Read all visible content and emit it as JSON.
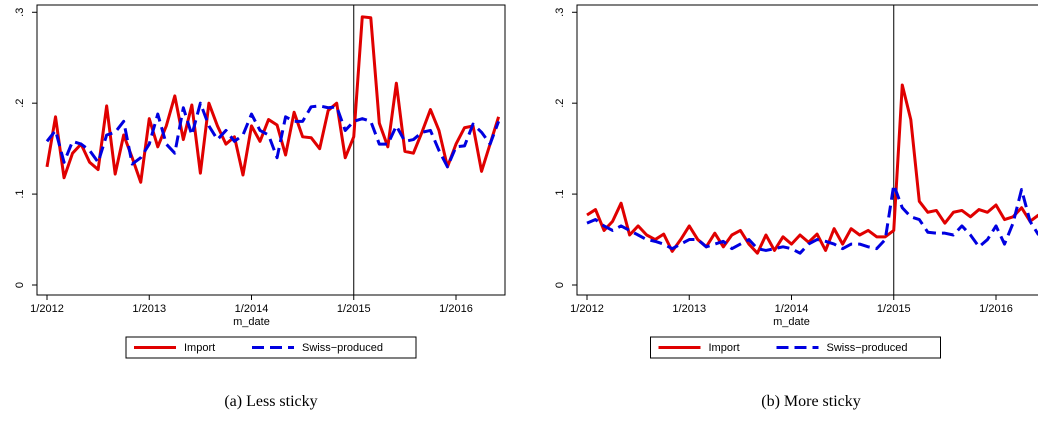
{
  "chart_data": [
    {
      "type": "line",
      "caption": "(a) Less sticky",
      "x_label": "m_date",
      "categories": [
        "1/2012",
        null,
        null,
        null,
        null,
        null,
        null,
        null,
        null,
        null,
        null,
        null,
        "1/2013",
        null,
        null,
        null,
        null,
        null,
        null,
        null,
        null,
        null,
        null,
        null,
        "1/2014",
        null,
        null,
        null,
        null,
        null,
        null,
        null,
        null,
        null,
        null,
        null,
        "1/2015",
        null,
        null,
        null,
        null,
        null,
        null,
        null,
        null,
        null,
        null,
        null,
        "1/2016",
        null,
        null,
        null,
        null,
        null
      ],
      "xline": 36,
      "ylim": [
        -0.011,
        0.308
      ],
      "yticks": [
        {
          "value": 0,
          "label": "0"
        },
        {
          "value": 0.1,
          "label": ".1"
        },
        {
          "value": 0.2,
          "label": ".2"
        },
        {
          "value": 0.3,
          "label": ".3"
        }
      ],
      "series": [
        {
          "name": "Import",
          "color": "#e00000",
          "dash": "solid",
          "values": [
            0.13,
            0.185,
            0.118,
            0.145,
            0.155,
            0.135,
            0.127,
            0.197,
            0.122,
            0.165,
            0.14,
            0.113,
            0.183,
            0.152,
            0.175,
            0.208,
            0.16,
            0.198,
            0.123,
            0.2,
            0.175,
            0.155,
            0.163,
            0.121,
            0.175,
            0.158,
            0.182,
            0.176,
            0.143,
            0.19,
            0.163,
            0.162,
            0.15,
            0.192,
            0.2,
            0.14,
            0.163,
            0.295,
            0.294,
            0.178,
            0.152,
            0.222,
            0.147,
            0.145,
            0.168,
            0.193,
            0.17,
            0.13,
            0.155,
            0.173,
            0.175,
            0.125,
            0.155,
            0.185
          ]
        },
        {
          "name": "Swiss−produced",
          "color": "#0000e0",
          "dash": "dashed",
          "values": [
            0.158,
            0.17,
            0.135,
            0.158,
            0.155,
            0.148,
            0.135,
            0.165,
            0.168,
            0.18,
            0.133,
            0.14,
            0.155,
            0.188,
            0.155,
            0.145,
            0.195,
            0.165,
            0.2,
            0.175,
            0.16,
            0.17,
            0.158,
            0.165,
            0.188,
            0.17,
            0.165,
            0.14,
            0.185,
            0.18,
            0.18,
            0.196,
            0.197,
            0.195,
            0.196,
            0.17,
            0.18,
            0.183,
            0.18,
            0.155,
            0.155,
            0.175,
            0.158,
            0.16,
            0.168,
            0.17,
            0.148,
            0.13,
            0.152,
            0.153,
            0.177,
            0.168,
            0.155,
            0.18
          ]
        }
      ]
    },
    {
      "type": "line",
      "caption": "(b) More sticky",
      "x_label": "m_date",
      "categories": [
        "1/2012",
        null,
        null,
        null,
        null,
        null,
        null,
        null,
        null,
        null,
        null,
        null,
        "1/2013",
        null,
        null,
        null,
        null,
        null,
        null,
        null,
        null,
        null,
        null,
        null,
        "1/2014",
        null,
        null,
        null,
        null,
        null,
        null,
        null,
        null,
        null,
        null,
        null,
        "1/2015",
        null,
        null,
        null,
        null,
        null,
        null,
        null,
        null,
        null,
        null,
        null,
        "1/2016",
        null,
        null,
        null,
        null,
        null
      ],
      "xline": 36,
      "ylim": [
        -0.011,
        0.308
      ],
      "yticks": [
        {
          "value": 0,
          "label": "0"
        },
        {
          "value": 0.1,
          "label": ".1"
        },
        {
          "value": 0.2,
          "label": ".2"
        },
        {
          "value": 0.3,
          "label": ".3"
        }
      ],
      "series": [
        {
          "name": "Import",
          "color": "#e00000",
          "dash": "solid",
          "values": [
            0.077,
            0.083,
            0.06,
            0.07,
            0.09,
            0.055,
            0.065,
            0.055,
            0.05,
            0.056,
            0.037,
            0.05,
            0.065,
            0.05,
            0.042,
            0.057,
            0.042,
            0.055,
            0.06,
            0.045,
            0.035,
            0.055,
            0.038,
            0.053,
            0.045,
            0.055,
            0.047,
            0.056,
            0.038,
            0.062,
            0.045,
            0.062,
            0.055,
            0.06,
            0.053,
            0.053,
            0.06,
            0.22,
            0.182,
            0.092,
            0.08,
            0.082,
            0.068,
            0.08,
            0.082,
            0.075,
            0.083,
            0.08,
            0.088,
            0.072,
            0.075,
            0.085,
            0.07,
            0.077
          ]
        },
        {
          "name": "Swiss−produced",
          "color": "#0000e0",
          "dash": "dashed",
          "values": [
            0.068,
            0.072,
            0.065,
            0.06,
            0.065,
            0.06,
            0.055,
            0.05,
            0.048,
            0.045,
            0.04,
            0.045,
            0.05,
            0.05,
            0.042,
            0.045,
            0.048,
            0.04,
            0.045,
            0.05,
            0.04,
            0.038,
            0.04,
            0.042,
            0.04,
            0.035,
            0.045,
            0.05,
            0.048,
            0.045,
            0.04,
            0.045,
            0.045,
            0.042,
            0.04,
            0.05,
            0.11,
            0.085,
            0.075,
            0.072,
            0.058,
            0.057,
            0.057,
            0.055,
            0.065,
            0.055,
            0.042,
            0.05,
            0.065,
            0.045,
            0.068,
            0.105,
            0.07,
            0.055
          ]
        }
      ]
    }
  ]
}
